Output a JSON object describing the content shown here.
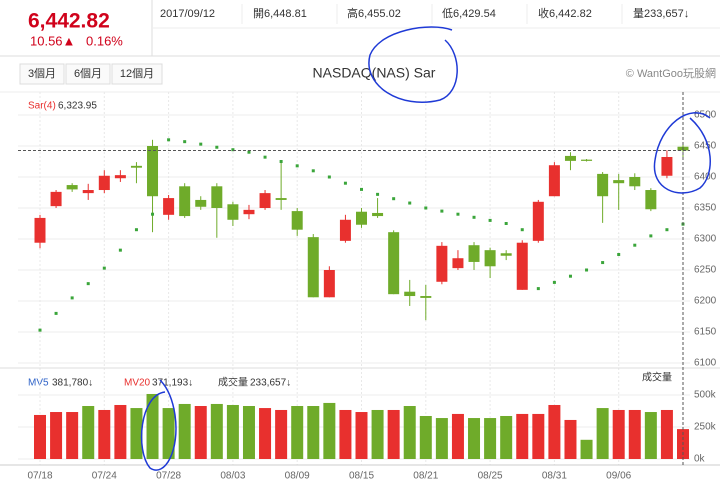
{
  "header": {
    "price": "6,442.82",
    "change": "10.56▲",
    "change_pct": "0.16%",
    "date": "2017/09/12",
    "open": "開6,448.81",
    "high": "高6,455.02",
    "low": "低6,429.54",
    "close": "收6,442.82",
    "volume": "量233,657↓",
    "buttons": [
      "3個月",
      "6個月",
      "12個月"
    ],
    "copyright": "© WantGoo玩股網"
  },
  "chart_data": {
    "type": "candlestick",
    "title": "NASDAQ(NAS) Sar",
    "categories": [
      "07/18",
      null,
      null,
      null,
      "07/24",
      null,
      null,
      null,
      "07/28",
      null,
      null,
      null,
      "08/03",
      null,
      null,
      null,
      "08/09",
      null,
      null,
      null,
      "08/15",
      null,
      null,
      null,
      "08/21",
      null,
      null,
      null,
      "08/25",
      null,
      null,
      null,
      "08/31",
      null,
      null,
      null,
      "09/06",
      null,
      null,
      null,
      null
    ],
    "open": [
      6294,
      6353,
      6387,
      6374,
      6379,
      6398,
      6418,
      6450,
      6339,
      6385,
      6363,
      6385,
      6356,
      6340,
      6350,
      6366,
      6345,
      6303,
      6206,
      6297,
      6344,
      6342,
      6311,
      6215,
      6208,
      6231,
      6253,
      6290,
      6282,
      6277,
      6218,
      6297,
      6369,
      6434,
      6428,
      6405,
      6395,
      6400,
      6379,
      6402,
      6448.81
    ],
    "high": [
      6339,
      6379,
      6390,
      6389,
      6411,
      6411,
      6424,
      6460,
      6371,
      6390,
      6369,
      6390,
      6360,
      6355,
      6379,
      6424,
      6350,
      6308,
      6256,
      6339,
      6350,
      6366,
      6314,
      6234,
      6226,
      6295,
      6282,
      6295,
      6286,
      6282,
      6298,
      6363,
      6424,
      6440,
      6429,
      6408,
      6405,
      6406,
      6382,
      6443,
      6455.02
    ],
    "low": [
      6285,
      6350,
      6376,
      6363,
      6374,
      6392,
      6390,
      6311,
      6331,
      6334,
      6347,
      6302,
      6321,
      6332,
      6347,
      6347,
      6305,
      6206,
      6206,
      6294,
      6318,
      6334,
      6211,
      6192,
      6169,
      6227,
      6250,
      6250,
      6237,
      6266,
      6218,
      6294,
      6369,
      6411,
      6425,
      6326,
      6347,
      6379,
      6345,
      6398,
      6429.54
    ],
    "close": [
      6334,
      6376,
      6380,
      6379,
      6402,
      6403,
      6415,
      6369,
      6366,
      6337,
      6352,
      6350,
      6331,
      6347,
      6374,
      6363,
      6315,
      6206,
      6250,
      6331,
      6323,
      6337,
      6211,
      6208,
      6205,
      6289,
      6269,
      6263,
      6256,
      6273,
      6294,
      6360,
      6419,
      6426,
      6426,
      6369,
      6390,
      6385,
      6348,
      6432.26,
      6442.82
    ],
    "up_color": "#e8302e",
    "down_color": "#6fab2a",
    "ylim": [
      6100,
      6500
    ],
    "yticks": [
      6100,
      6150,
      6200,
      6250,
      6300,
      6350,
      6400,
      6450,
      6500
    ],
    "grid": true,
    "sar": {
      "name": "Sar(4)",
      "value_label": "6,323.95",
      "color": "#3aa53a",
      "values": [
        6153,
        6180,
        6205,
        6228,
        6253,
        6282,
        6315,
        6340,
        6460,
        6457,
        6453,
        6448,
        6444,
        6440,
        6432,
        6425,
        6418,
        6410,
        6400,
        6390,
        6380,
        6372,
        6365,
        6358,
        6350,
        6345,
        6340,
        6335,
        6330,
        6325,
        6315,
        6220,
        6230,
        6240,
        6250,
        6262,
        6275,
        6290,
        6305,
        6315,
        6323.95
      ]
    },
    "volume": {
      "name": "成交量",
      "value_label": "233,657↓",
      "ma5": "MV5",
      "ma5_label": "381,780↓",
      "ma20": "MV20",
      "ma20_label": "371,193↓",
      "values": [
        344000,
        367000,
        367000,
        414000,
        383000,
        422000,
        398000,
        508000,
        398000,
        430000,
        414000,
        430000,
        422000,
        414000,
        398000,
        383000,
        414000,
        414000,
        438000,
        383000,
        367000,
        383000,
        383000,
        414000,
        336000,
        320000,
        352000,
        320000,
        320000,
        336000,
        352000,
        352000,
        422000,
        305000,
        150000,
        398000,
        383000,
        383000,
        367000,
        383000,
        233657
      ],
      "colors": [
        "#e8302e",
        "#e8302e",
        "#e8302e",
        "#6fab2a",
        "#e8302e",
        "#e8302e",
        "#6fab2a",
        "#6fab2a",
        "#6fab2a",
        "#6fab2a",
        "#e8302e",
        "#6fab2a",
        "#6fab2a",
        "#6fab2a",
        "#e8302e",
        "#e8302e",
        "#6fab2a",
        "#6fab2a",
        "#6fab2a",
        "#e8302e",
        "#e8302e",
        "#6fab2a",
        "#e8302e",
        "#6fab2a",
        "#6fab2a",
        "#6fab2a",
        "#e8302e",
        "#6fab2a",
        "#6fab2a",
        "#6fab2a",
        "#e8302e",
        "#e8302e",
        "#e8302e",
        "#e8302e",
        "#6fab2a",
        "#6fab2a",
        "#e8302e",
        "#e8302e",
        "#6fab2a",
        "#e8302e",
        "#e8302e"
      ],
      "ylim": [
        0,
        500000
      ],
      "yticks": [
        {
          "value": 0,
          "label": "0k"
        },
        {
          "value": 250000,
          "label": "250k"
        },
        {
          "value": 500000,
          "label": "500k"
        }
      ]
    }
  }
}
